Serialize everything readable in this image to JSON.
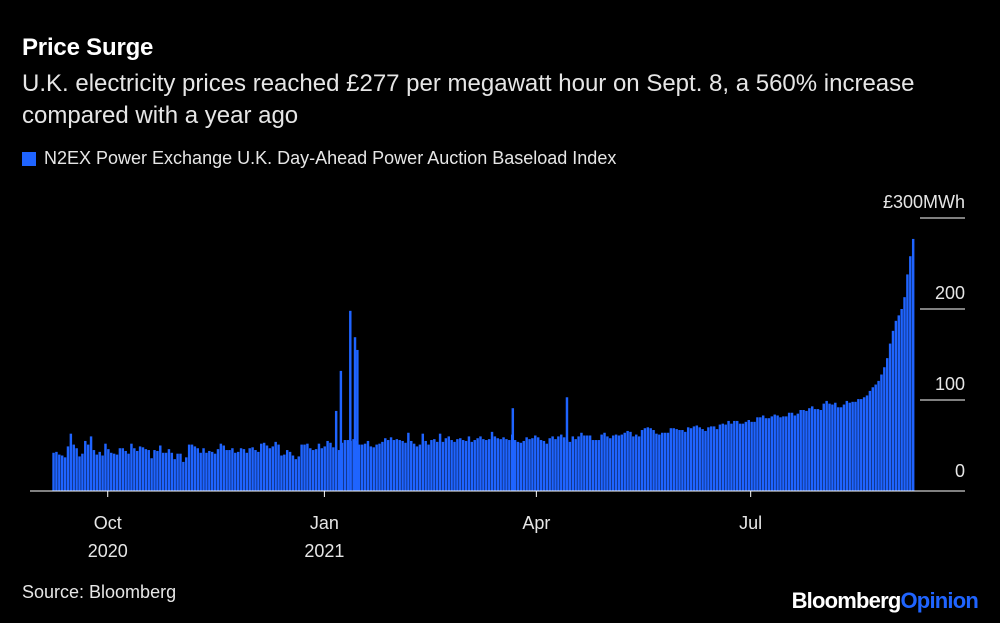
{
  "title": "Price Surge",
  "subtitle": "U.K. electricity prices reached £277 per megawatt hour on Sept. 8, a 560% increase compared with a year ago",
  "source": "Source: Bloomberg",
  "brand": {
    "part1": "Bloomberg",
    "part2": "Opinion"
  },
  "colors": {
    "series": "#1f64ff",
    "background": "#000000",
    "text": "#ffffff",
    "grid": "#ffffff"
  },
  "chart_data": {
    "type": "bar",
    "title": "Price Surge",
    "series": [
      {
        "name": "N2EX Power Exchange U.K. Day-Ahead Power Auction Baseload Index",
        "start_date": "2020-09-08",
        "end_date": "2021-09-08",
        "frequency": "daily",
        "values": [
          42,
          43,
          40,
          39,
          37,
          49,
          63,
          51,
          47,
          38,
          41,
          55,
          51,
          60,
          45,
          40,
          43,
          39,
          52,
          46,
          42,
          41,
          40,
          47,
          47,
          44,
          41,
          52,
          47,
          44,
          49,
          48,
          46,
          45,
          36,
          45,
          44,
          50,
          42,
          42,
          46,
          42,
          35,
          41,
          41,
          32,
          37,
          51,
          51,
          49,
          47,
          42,
          47,
          42,
          44,
          43,
          41,
          46,
          52,
          50,
          45,
          45,
          47,
          42,
          43,
          47,
          46,
          42,
          47,
          48,
          45,
          43,
          52,
          53,
          50,
          47,
          49,
          54,
          51,
          39,
          40,
          45,
          43,
          39,
          35,
          38,
          51,
          51,
          52,
          47,
          45,
          46,
          52,
          47,
          49,
          55,
          53,
          48,
          46,
          45,
          53,
          56,
          56,
          55,
          57,
          55,
          51,
          51,
          52,
          55,
          49,
          48,
          51,
          52,
          54,
          58,
          56,
          59,
          56,
          57,
          56,
          55,
          53,
          64,
          55,
          52,
          49,
          51,
          63,
          55,
          51,
          56,
          57,
          54,
          63,
          54,
          58,
          60,
          56,
          54,
          57,
          58,
          56,
          55,
          60,
          54,
          56,
          58,
          60,
          57,
          56,
          57,
          65,
          60,
          58,
          57,
          59,
          57,
          56,
          62,
          56,
          54,
          53,
          55,
          59,
          57,
          58,
          61,
          59,
          56,
          55,
          52,
          58,
          60,
          57,
          60,
          62,
          59,
          56,
          54,
          60,
          57,
          60,
          64,
          61,
          61,
          61,
          56,
          56,
          56,
          62,
          64,
          60,
          58,
          61,
          62,
          61,
          62,
          64,
          66,
          65,
          60,
          62,
          60,
          67,
          69,
          70,
          69,
          67,
          63,
          62,
          64,
          64,
          64,
          69,
          69,
          68,
          67,
          67,
          65,
          70,
          69,
          71,
          72,
          70,
          68,
          66,
          70,
          71,
          71,
          68,
          73,
          74,
          73,
          77,
          74,
          77,
          77,
          74,
          74,
          76,
          78,
          76,
          76,
          81,
          81,
          83,
          80,
          80,
          82,
          84,
          83,
          81,
          82,
          82,
          86,
          86,
          83,
          85,
          89,
          89,
          88,
          91,
          93,
          90,
          90,
          89,
          96,
          99,
          96,
          95,
          97,
          92,
          92,
          95,
          99,
          97,
          98,
          98,
          101,
          101,
          103,
          105,
          110,
          114,
          117,
          121,
          128,
          136,
          146,
          162,
          176,
          187,
          193,
          200,
          213,
          238,
          258,
          277
        ]
      }
    ],
    "overlay_spikes": [
      {
        "date": "2021-01-06",
        "value": 88
      },
      {
        "date": "2021-01-08",
        "value": 132
      },
      {
        "date": "2021-01-12",
        "value": 198
      },
      {
        "date": "2021-01-14",
        "value": 169
      },
      {
        "date": "2021-01-15",
        "value": 155
      },
      {
        "date": "2021-03-22",
        "value": 91
      },
      {
        "date": "2021-04-14",
        "value": 103
      }
    ],
    "x_ticks": [
      {
        "date": "2020-10-01",
        "label": "Oct",
        "sublabel": "2020"
      },
      {
        "date": "2021-01-01",
        "label": "Jan",
        "sublabel": "2021"
      },
      {
        "date": "2021-04-01",
        "label": "Apr",
        "sublabel": ""
      },
      {
        "date": "2021-07-01",
        "label": "Jul",
        "sublabel": ""
      }
    ],
    "y_ticks": [
      {
        "value": 300,
        "label": "£300MWh"
      },
      {
        "value": 200,
        "label": "200"
      },
      {
        "value": 100,
        "label": "100"
      },
      {
        "value": 0,
        "label": "0"
      }
    ],
    "ylim": [
      0,
      300
    ],
    "xlim": [
      "2020-08-29",
      "2021-09-30"
    ],
    "xlabel": "",
    "ylabel": "£/MWh",
    "legend_position": "top-left"
  }
}
